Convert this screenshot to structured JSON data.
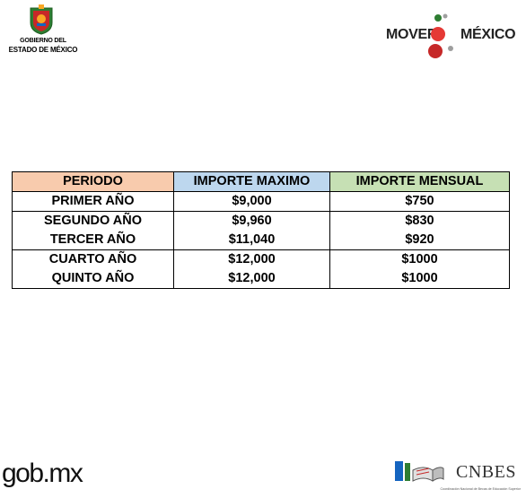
{
  "header": {
    "left_logo": {
      "line1": "GOBIERNO DEL",
      "line2": "ESTADO DE MÉXICO"
    },
    "right_logo": {
      "word1": "MOVER",
      "word2": "MÉXICO"
    }
  },
  "table": {
    "headers": [
      "PERIODO",
      "IMPORTE MAXIMO",
      "IMPORTE MENSUAL"
    ],
    "header_colors": [
      "#f8cbad",
      "#bdd7ee",
      "#c6e0b4"
    ],
    "rows": [
      [
        "PRIMER AÑO",
        "$9,000",
        "$750"
      ],
      [
        "SEGUNDO AÑO",
        "$9,960",
        "$830"
      ],
      [
        "TERCER AÑO",
        "$11,040",
        "$920"
      ],
      [
        "CUARTO AÑO",
        "$12,000",
        "$1000"
      ],
      [
        "QUINTO AÑO",
        "$12,000",
        "$1000"
      ]
    ]
  },
  "footer": {
    "left_logo": "gob.mx",
    "right_logo": "CNBES",
    "right_logo_sub": "Coordinación Nacional de Becas de Educación Superior"
  }
}
